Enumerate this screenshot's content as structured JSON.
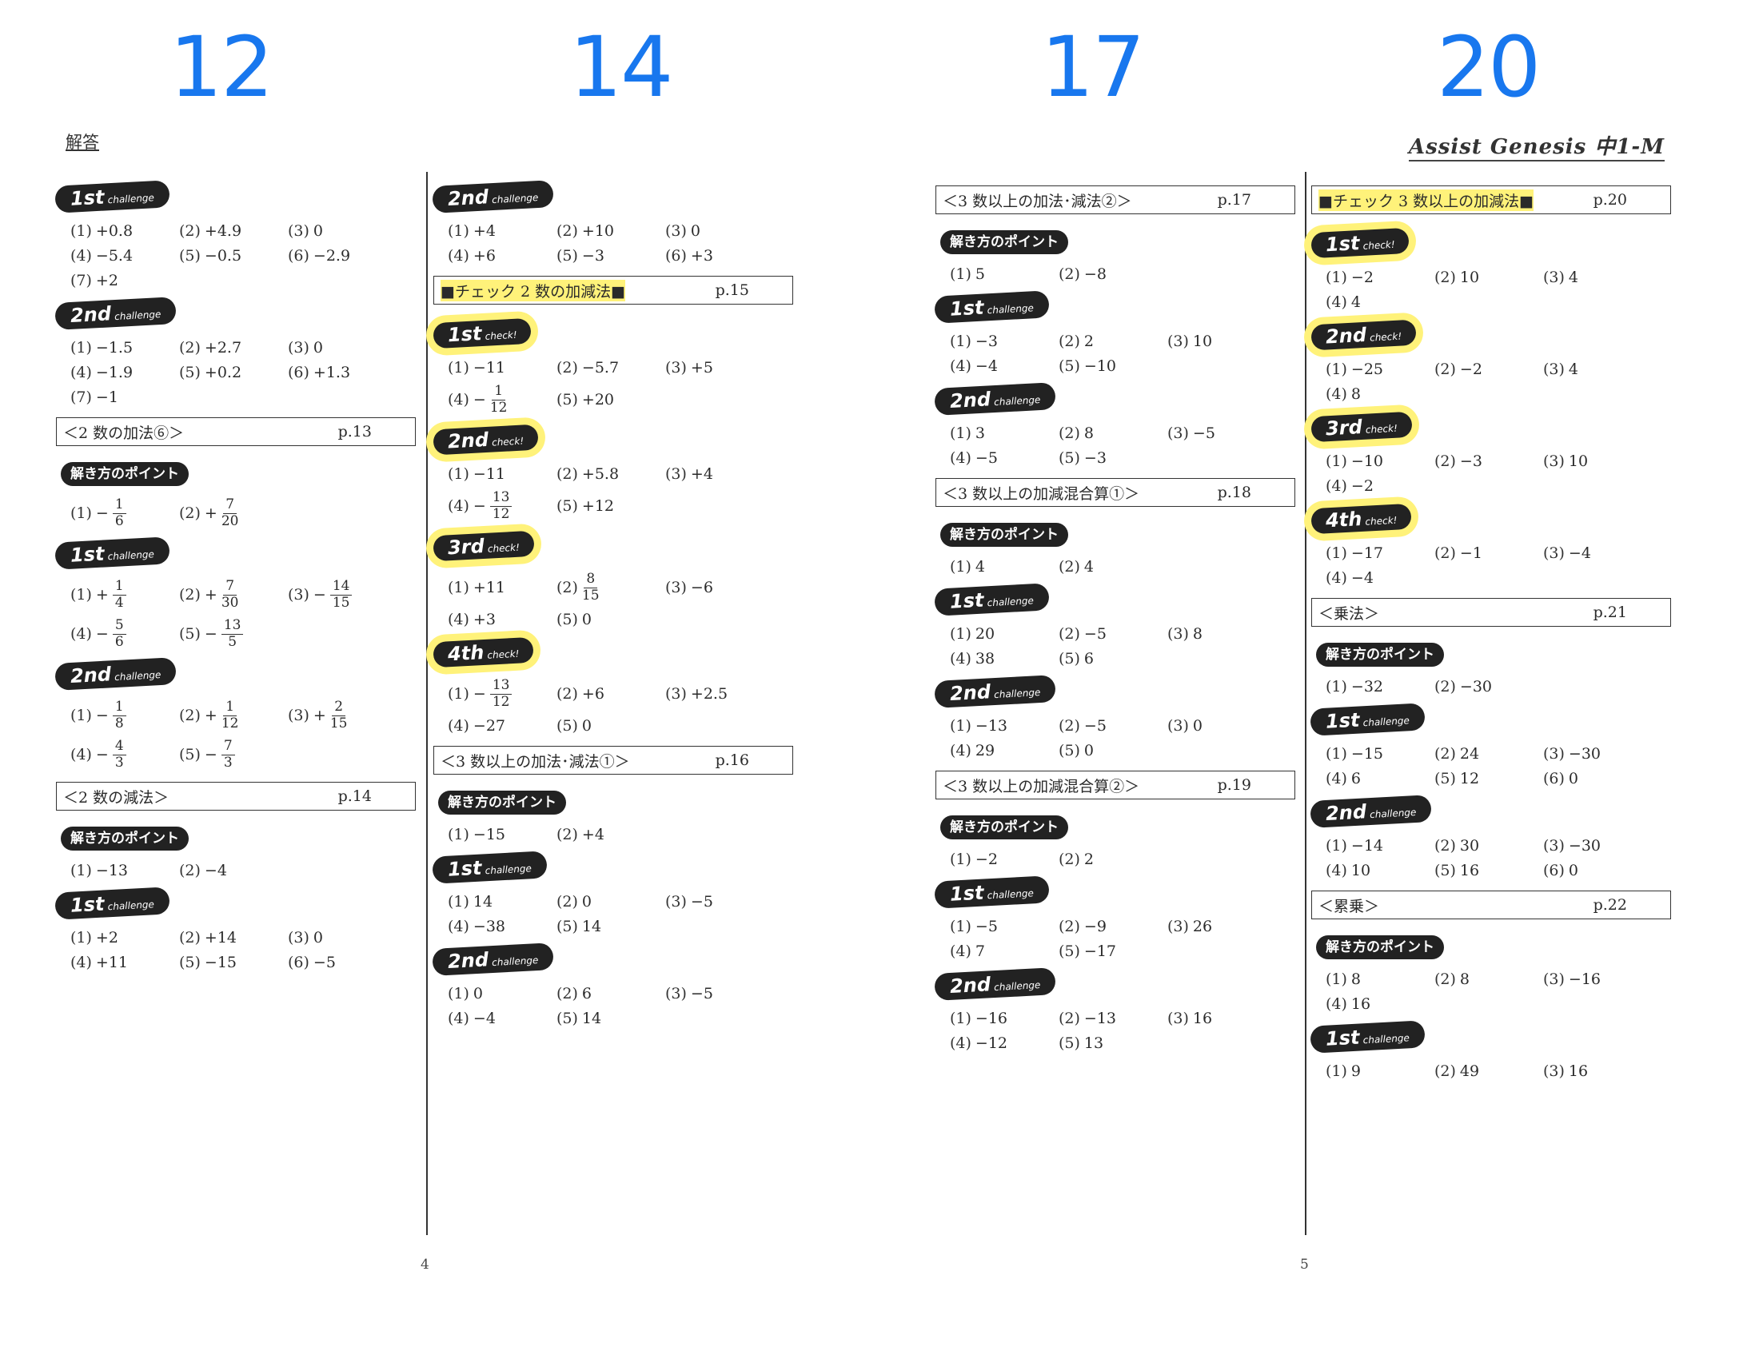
{
  "top_numbers": [
    "12",
    "14",
    "17",
    "20"
  ],
  "header": {
    "left": "解答",
    "right": "Assist Genesis 中1-M"
  },
  "page_numbers": [
    "4",
    "5"
  ],
  "col1": [
    {
      "k": "b",
      "m": "1st",
      "s": "challenge"
    },
    {
      "k": "g",
      "items": [
        {
          "n": "(1)",
          "v": "+0.8"
        },
        {
          "n": "(2)",
          "v": "+4.9"
        },
        {
          "n": "(3)",
          "v": "0"
        },
        {
          "n": "(4)",
          "v": "−5.4"
        },
        {
          "n": "(5)",
          "v": "−0.5"
        },
        {
          "n": "(6)",
          "v": "−2.9"
        },
        {
          "n": "(7)",
          "v": "+2"
        }
      ]
    },
    {
      "k": "b",
      "m": "2nd",
      "s": "challenge"
    },
    {
      "k": "g",
      "items": [
        {
          "n": "(1)",
          "v": "−1.5"
        },
        {
          "n": "(2)",
          "v": "+2.7"
        },
        {
          "n": "(3)",
          "v": "0"
        },
        {
          "n": "(4)",
          "v": "−1.9"
        },
        {
          "n": "(5)",
          "v": "+0.2"
        },
        {
          "n": "(6)",
          "v": "+1.3"
        },
        {
          "n": "(7)",
          "v": "−1"
        }
      ]
    },
    {
      "k": "h",
      "t": "＜2 数の加法⑥＞",
      "p": "p.13"
    },
    {
      "k": "p",
      "t": "解き方のポイント"
    },
    {
      "k": "g",
      "items": [
        {
          "n": "(1)",
          "s": "−",
          "f": [
            "1",
            "6"
          ]
        },
        {
          "n": "(2)",
          "s": "+",
          "f": [
            "7",
            "20"
          ]
        }
      ]
    },
    {
      "k": "b",
      "m": "1st",
      "s": "challenge"
    },
    {
      "k": "g",
      "items": [
        {
          "n": "(1)",
          "s": "+",
          "f": [
            "1",
            "4"
          ]
        },
        {
          "n": "(2)",
          "s": "+",
          "f": [
            "7",
            "30"
          ]
        },
        {
          "n": "(3)",
          "s": "−",
          "f": [
            "14",
            "15"
          ]
        },
        {
          "n": "(4)",
          "s": "−",
          "f": [
            "5",
            "6"
          ]
        },
        {
          "n": "(5)",
          "s": "−",
          "f": [
            "13",
            "5"
          ]
        }
      ]
    },
    {
      "k": "b",
      "m": "2nd",
      "s": "challenge"
    },
    {
      "k": "g",
      "items": [
        {
          "n": "(1)",
          "s": "−",
          "f": [
            "1",
            "8"
          ]
        },
        {
          "n": "(2)",
          "s": "+",
          "f": [
            "1",
            "12"
          ]
        },
        {
          "n": "(3)",
          "s": "+",
          "f": [
            "2",
            "15"
          ]
        },
        {
          "n": "(4)",
          "s": "−",
          "f": [
            "4",
            "3"
          ]
        },
        {
          "n": "(5)",
          "s": "−",
          "f": [
            "7",
            "3"
          ]
        }
      ]
    },
    {
      "k": "h",
      "t": "＜2 数の減法＞",
      "p": "p.14"
    },
    {
      "k": "p",
      "t": "解き方のポイント"
    },
    {
      "k": "g",
      "items": [
        {
          "n": "(1)",
          "v": "−13"
        },
        {
          "n": "(2)",
          "v": "−4"
        }
      ]
    },
    {
      "k": "b",
      "m": "1st",
      "s": "challenge"
    },
    {
      "k": "g",
      "items": [
        {
          "n": "(1)",
          "v": "+2"
        },
        {
          "n": "(2)",
          "v": "+14"
        },
        {
          "n": "(3)",
          "v": "0"
        },
        {
          "n": "(4)",
          "v": "+11"
        },
        {
          "n": "(5)",
          "v": "−15"
        },
        {
          "n": "(6)",
          "v": "−5"
        }
      ]
    }
  ],
  "col2": [
    {
      "k": "b",
      "m": "2nd",
      "s": "challenge"
    },
    {
      "k": "g",
      "items": [
        {
          "n": "(1)",
          "v": "+4"
        },
        {
          "n": "(2)",
          "v": "+10"
        },
        {
          "n": "(3)",
          "v": "0"
        },
        {
          "n": "(4)",
          "v": "+6"
        },
        {
          "n": "(5)",
          "v": "−3"
        },
        {
          "n": "(6)",
          "v": "+3"
        }
      ]
    },
    {
      "k": "h",
      "t": "■チェック 2 数の加減法■",
      "p": "p.15",
      "hl": true
    },
    {
      "k": "b",
      "m": "1st",
      "s": "check!",
      "hl": true
    },
    {
      "k": "g",
      "items": [
        {
          "n": "(1)",
          "v": "−11"
        },
        {
          "n": "(2)",
          "v": "−5.7"
        },
        {
          "n": "(3)",
          "v": "+5"
        },
        {
          "n": "(4)",
          "s": "−",
          "f": [
            "1",
            "12"
          ]
        },
        {
          "n": "(5)",
          "v": "+20"
        }
      ]
    },
    {
      "k": "b",
      "m": "2nd",
      "s": "check!",
      "hl": true
    },
    {
      "k": "g",
      "items": [
        {
          "n": "(1)",
          "v": "−11"
        },
        {
          "n": "(2)",
          "v": "+5.8"
        },
        {
          "n": "(3)",
          "v": "+4"
        },
        {
          "n": "(4)",
          "s": "−",
          "f": [
            "13",
            "12"
          ]
        },
        {
          "n": "(5)",
          "v": "+12"
        }
      ]
    },
    {
      "k": "b",
      "m": "3rd",
      "s": "check!",
      "hl": true
    },
    {
      "k": "g",
      "items": [
        {
          "n": "(1)",
          "v": "+11"
        },
        {
          "n": "(2)",
          "s": "",
          "f": [
            "8",
            "15"
          ]
        },
        {
          "n": "(3)",
          "v": "−6"
        },
        {
          "n": "(4)",
          "v": "+3"
        },
        {
          "n": "(5)",
          "v": "0"
        }
      ]
    },
    {
      "k": "b",
      "m": "4th",
      "s": "check!",
      "hl": true
    },
    {
      "k": "g",
      "items": [
        {
          "n": "(1)",
          "s": "−",
          "f": [
            "13",
            "12"
          ]
        },
        {
          "n": "(2)",
          "v": "+6"
        },
        {
          "n": "(3)",
          "v": "+2.5"
        },
        {
          "n": "(4)",
          "v": "−27"
        },
        {
          "n": "(5)",
          "v": "0"
        }
      ]
    },
    {
      "k": "h",
      "t": "＜3 数以上の加法･減法①＞",
      "p": "p.16"
    },
    {
      "k": "p",
      "t": "解き方のポイント"
    },
    {
      "k": "g",
      "items": [
        {
          "n": "(1)",
          "v": "−15"
        },
        {
          "n": "(2)",
          "v": "+4"
        }
      ]
    },
    {
      "k": "b",
      "m": "1st",
      "s": "challenge"
    },
    {
      "k": "g",
      "items": [
        {
          "n": "(1)",
          "v": "14"
        },
        {
          "n": "(2)",
          "v": "0"
        },
        {
          "n": "(3)",
          "v": "−5"
        },
        {
          "n": "(4)",
          "v": "−38"
        },
        {
          "n": "(5)",
          "v": "14"
        }
      ]
    },
    {
      "k": "b",
      "m": "2nd",
      "s": "challenge"
    },
    {
      "k": "g",
      "items": [
        {
          "n": "(1)",
          "v": "0"
        },
        {
          "n": "(2)",
          "v": "6"
        },
        {
          "n": "(3)",
          "v": "−5"
        },
        {
          "n": "(4)",
          "v": "−4"
        },
        {
          "n": "(5)",
          "v": "14"
        }
      ]
    }
  ],
  "col3": [
    {
      "k": "h",
      "t": "＜3 数以上の加法･減法②＞",
      "p": "p.17"
    },
    {
      "k": "p",
      "t": "解き方のポイント"
    },
    {
      "k": "g",
      "items": [
        {
          "n": "(1)",
          "v": "5"
        },
        {
          "n": "(2)",
          "v": "−8"
        }
      ]
    },
    {
      "k": "b",
      "m": "1st",
      "s": "challenge"
    },
    {
      "k": "g",
      "items": [
        {
          "n": "(1)",
          "v": "−3"
        },
        {
          "n": "(2)",
          "v": "2"
        },
        {
          "n": "(3)",
          "v": "10"
        },
        {
          "n": "(4)",
          "v": "−4"
        },
        {
          "n": "(5)",
          "v": "−10"
        }
      ]
    },
    {
      "k": "b",
      "m": "2nd",
      "s": "challenge"
    },
    {
      "k": "g",
      "items": [
        {
          "n": "(1)",
          "v": "3"
        },
        {
          "n": "(2)",
          "v": "8"
        },
        {
          "n": "(3)",
          "v": "−5"
        },
        {
          "n": "(4)",
          "v": "−5"
        },
        {
          "n": "(5)",
          "v": "−3"
        }
      ]
    },
    {
      "k": "h",
      "t": "＜3 数以上の加減混合算①＞",
      "p": "p.18"
    },
    {
      "k": "p",
      "t": "解き方のポイント"
    },
    {
      "k": "g",
      "items": [
        {
          "n": "(1)",
          "v": "4"
        },
        {
          "n": "(2)",
          "v": "4"
        }
      ]
    },
    {
      "k": "b",
      "m": "1st",
      "s": "challenge"
    },
    {
      "k": "g",
      "items": [
        {
          "n": "(1)",
          "v": "20"
        },
        {
          "n": "(2)",
          "v": "−5"
        },
        {
          "n": "(3)",
          "v": "8"
        },
        {
          "n": "(4)",
          "v": "38"
        },
        {
          "n": "(5)",
          "v": "6"
        }
      ]
    },
    {
      "k": "b",
      "m": "2nd",
      "s": "challenge"
    },
    {
      "k": "g",
      "items": [
        {
          "n": "(1)",
          "v": "−13"
        },
        {
          "n": "(2)",
          "v": "−5"
        },
        {
          "n": "(3)",
          "v": "0"
        },
        {
          "n": "(4)",
          "v": "29"
        },
        {
          "n": "(5)",
          "v": "0"
        }
      ]
    },
    {
      "k": "h",
      "t": "＜3 数以上の加減混合算②＞",
      "p": "p.19"
    },
    {
      "k": "p",
      "t": "解き方のポイント"
    },
    {
      "k": "g",
      "items": [
        {
          "n": "(1)",
          "v": "−2"
        },
        {
          "n": "(2)",
          "v": "2"
        }
      ]
    },
    {
      "k": "b",
      "m": "1st",
      "s": "challenge"
    },
    {
      "k": "g",
      "items": [
        {
          "n": "(1)",
          "v": "−5"
        },
        {
          "n": "(2)",
          "v": "−9"
        },
        {
          "n": "(3)",
          "v": "26"
        },
        {
          "n": "(4)",
          "v": "7"
        },
        {
          "n": "(5)",
          "v": "−17"
        }
      ]
    },
    {
      "k": "b",
      "m": "2nd",
      "s": "challenge"
    },
    {
      "k": "g",
      "items": [
        {
          "n": "(1)",
          "v": "−16"
        },
        {
          "n": "(2)",
          "v": "−13"
        },
        {
          "n": "(3)",
          "v": "16"
        },
        {
          "n": "(4)",
          "v": "−12"
        },
        {
          "n": "(5)",
          "v": "13"
        }
      ]
    }
  ],
  "col4": [
    {
      "k": "h",
      "t": "■チェック 3 数以上の加減法■",
      "p": "p.20",
      "hl": true
    },
    {
      "k": "b",
      "m": "1st",
      "s": "check!",
      "hl": true
    },
    {
      "k": "g",
      "items": [
        {
          "n": "(1)",
          "v": "−2"
        },
        {
          "n": "(2)",
          "v": "10"
        },
        {
          "n": "(3)",
          "v": "4"
        },
        {
          "n": "(4)",
          "v": "4"
        }
      ]
    },
    {
      "k": "b",
      "m": "2nd",
      "s": "check!",
      "hl": true
    },
    {
      "k": "g",
      "items": [
        {
          "n": "(1)",
          "v": "−25"
        },
        {
          "n": "(2)",
          "v": "−2"
        },
        {
          "n": "(3)",
          "v": "4"
        },
        {
          "n": "(4)",
          "v": "8"
        }
      ]
    },
    {
      "k": "b",
      "m": "3rd",
      "s": "check!",
      "hl": true
    },
    {
      "k": "g",
      "items": [
        {
          "n": "(1)",
          "v": "−10"
        },
        {
          "n": "(2)",
          "v": "−3"
        },
        {
          "n": "(3)",
          "v": "10"
        },
        {
          "n": "(4)",
          "v": "−2"
        }
      ]
    },
    {
      "k": "b",
      "m": "4th",
      "s": "check!",
      "hl": true
    },
    {
      "k": "g",
      "items": [
        {
          "n": "(1)",
          "v": "−17"
        },
        {
          "n": "(2)",
          "v": "−1"
        },
        {
          "n": "(3)",
          "v": "−4"
        },
        {
          "n": "(4)",
          "v": "−4"
        }
      ]
    },
    {
      "k": "h",
      "t": "＜乗法＞",
      "p": "p.21"
    },
    {
      "k": "p",
      "t": "解き方のポイント"
    },
    {
      "k": "g",
      "items": [
        {
          "n": "(1)",
          "v": "−32"
        },
        {
          "n": "(2)",
          "v": "−30"
        }
      ]
    },
    {
      "k": "b",
      "m": "1st",
      "s": "challenge"
    },
    {
      "k": "g",
      "items": [
        {
          "n": "(1)",
          "v": "−15"
        },
        {
          "n": "(2)",
          "v": "24"
        },
        {
          "n": "(3)",
          "v": "−30"
        },
        {
          "n": "(4)",
          "v": "6"
        },
        {
          "n": "(5)",
          "v": "12"
        },
        {
          "n": "(6)",
          "v": "0"
        }
      ]
    },
    {
      "k": "b",
      "m": "2nd",
      "s": "challenge"
    },
    {
      "k": "g",
      "items": [
        {
          "n": "(1)",
          "v": "−14"
        },
        {
          "n": "(2)",
          "v": "30"
        },
        {
          "n": "(3)",
          "v": "−30"
        },
        {
          "n": "(4)",
          "v": "10"
        },
        {
          "n": "(5)",
          "v": "16"
        },
        {
          "n": "(6)",
          "v": "0"
        }
      ]
    },
    {
      "k": "h",
      "t": "＜累乗＞",
      "p": "p.22"
    },
    {
      "k": "p",
      "t": "解き方のポイント"
    },
    {
      "k": "g",
      "items": [
        {
          "n": "(1)",
          "v": "8"
        },
        {
          "n": "(2)",
          "v": "8"
        },
        {
          "n": "(3)",
          "v": "−16"
        },
        {
          "n": "(4)",
          "v": "16"
        }
      ]
    },
    {
      "k": "b",
      "m": "1st",
      "s": "challenge"
    },
    {
      "k": "g",
      "items": [
        {
          "n": "(1)",
          "v": "9"
        },
        {
          "n": "(2)",
          "v": "49"
        },
        {
          "n": "(3)",
          "v": "16"
        }
      ]
    }
  ]
}
